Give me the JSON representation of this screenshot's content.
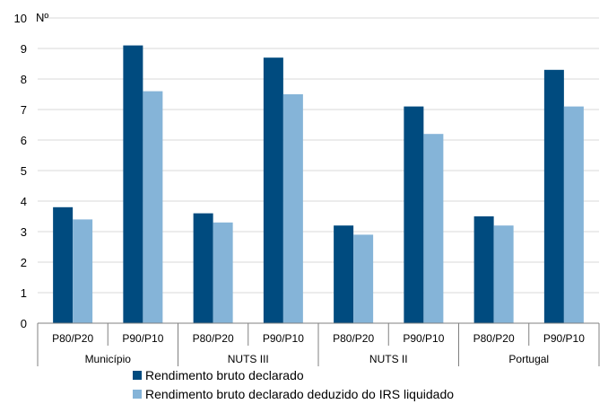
{
  "chart_data": {
    "type": "bar",
    "ylabel": "Nº",
    "ylim": [
      0,
      10
    ],
    "yticks": [
      0,
      1,
      2,
      3,
      4,
      5,
      6,
      7,
      8,
      9,
      10
    ],
    "grid": true,
    "groups": [
      {
        "label": "Município",
        "categories": [
          "P80/P20",
          "P90/P10"
        ]
      },
      {
        "label": "NUTS III",
        "categories": [
          "P80/P20",
          "P90/P10"
        ]
      },
      {
        "label": "NUTS II",
        "categories": [
          "P80/P20",
          "P90/P10"
        ]
      },
      {
        "label": "Portugal",
        "categories": [
          "P80/P20",
          "P90/P10"
        ]
      }
    ],
    "series": [
      {
        "name": "Rendimento bruto declarado",
        "color": "#004b7f",
        "values": [
          3.8,
          9.1,
          3.6,
          8.7,
          3.2,
          7.1,
          3.5,
          8.3
        ]
      },
      {
        "name": "Rendimento bruto declarado deduzido do IRS liquidado",
        "color": "#85b4d8",
        "values": [
          3.4,
          7.6,
          3.3,
          7.5,
          2.9,
          6.2,
          3.2,
          7.1
        ]
      }
    ],
    "legend_position": "bottom"
  }
}
